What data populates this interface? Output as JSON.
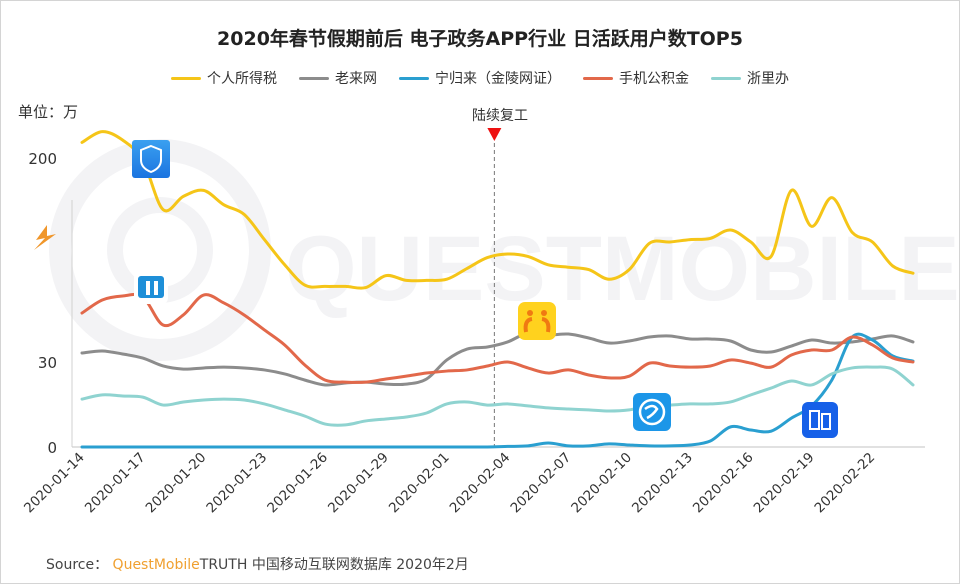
{
  "title": "2020年春节假期前后 电子政务APP行业 日活跃用户数TOP5",
  "unit_label": "单位：万",
  "annotation": "陆续复工",
  "source": {
    "prefix": "Source：",
    "brand": "QuestMobile",
    "rest": "TRUTH 中国移动互联网数据库 2020年2月"
  },
  "watermark": "QUESTMOBILE",
  "icons": [
    "tax-app-icon",
    "beijingtong-app-icon",
    "laolaiwang-app-icon",
    "ningguilai-app-icon",
    "housing-fund-app-icon"
  ],
  "chart_data": {
    "type": "line",
    "title": "2020年春节假期前后 电子政务APP行业 日活跃用户数TOP5",
    "ylabel": "单位：万",
    "xlabel": "",
    "y_axis_break": "between 30 and 200 (axis broken)",
    "yticks": [
      "0",
      "30",
      "200"
    ],
    "ytick_values": [
      0,
      30,
      200
    ],
    "ylim": [
      0,
      220
    ],
    "legend_position": "top-center",
    "grid": false,
    "annotation": {
      "label": "陆续复工",
      "x": "2020-02-03"
    },
    "x_start": "2020-01-14",
    "x_end": "2020-02-24",
    "xticks": [
      "2020-01-14",
      "2020-01-17",
      "2020-01-20",
      "2020-01-23",
      "2020-01-26",
      "2020-01-29",
      "2020-02-01",
      "2020-02-04",
      "2020-02-07",
      "2020-02-10",
      "2020-02-13",
      "2020-02-16",
      "2020-02-19",
      "2020-02-22"
    ],
    "series": [
      {
        "name": "个人所得税",
        "color": "#f5c518",
        "values": [
          213,
          222,
          215,
          198,
          157,
          168,
          173,
          161,
          153,
          132,
          111,
          94,
          93,
          93,
          92,
          102,
          98,
          98,
          99,
          108,
          117,
          120,
          118,
          111,
          109,
          107,
          99,
          107,
          129,
          130,
          132,
          133,
          140,
          130,
          118,
          173,
          143,
          167,
          138,
          130,
          110,
          104
        ]
      },
      {
        "name": "老来网",
        "color": "#8c8c8c",
        "values": [
          37.5,
          39.2,
          36.7,
          33.3,
          28.6,
          27.5,
          27.9,
          28.2,
          27.9,
          27.2,
          25.8,
          23.6,
          21.9,
          22.6,
          22.9,
          22.2,
          22.2,
          24.0,
          31.7,
          40.8,
          42.5,
          46.7,
          54.2,
          52.5,
          53.3,
          50.0,
          45.8,
          47.5,
          50.8,
          51.7,
          49.2,
          49.2,
          47.5,
          40.0,
          38.3,
          43.3,
          48.3,
          45.8,
          46.7,
          49.2,
          51.7,
          46.7
        ]
      },
      {
        "name": "宁归来（金陵网证）",
        "color": "#2a9fd0",
        "values": [
          0,
          0,
          0,
          0,
          0,
          0,
          0,
          0,
          0,
          0,
          0,
          0,
          0,
          0,
          0,
          0,
          0,
          0,
          0,
          0,
          0,
          0.2,
          0.4,
          1.4,
          0.4,
          0.4,
          1.1,
          0.7,
          0.4,
          0.4,
          0.7,
          2.1,
          7.1,
          6.0,
          5.6,
          10.2,
          14.5,
          23.7,
          50.8,
          48.3,
          35.0,
          30.8
        ]
      },
      {
        "name": "手机公积金",
        "color": "#e2684a",
        "values": [
          70.8,
          81.7,
          85.0,
          84.2,
          60.8,
          69.2,
          85.8,
          79.2,
          69.2,
          56.7,
          44.2,
          28.9,
          23.6,
          22.9,
          22.9,
          24.0,
          25.0,
          26.1,
          26.8,
          27.2,
          28.6,
          30.0,
          27.9,
          26.1,
          27.2,
          25.4,
          24.4,
          25.0,
          29.6,
          28.6,
          28.2,
          28.6,
          31.7,
          29.6,
          28.2,
          35.8,
          40.0,
          40.0,
          50.8,
          44.2,
          33.3,
          30.0
        ]
      },
      {
        "name": "浙里办",
        "color": "#8fd3d0",
        "values": [
          16.9,
          18.4,
          18.0,
          17.6,
          14.8,
          15.9,
          16.6,
          16.9,
          16.6,
          15.2,
          13.1,
          10.9,
          8.1,
          7.8,
          9.2,
          9.9,
          10.6,
          12.0,
          15.2,
          15.9,
          14.8,
          15.2,
          14.5,
          13.8,
          13.4,
          13.1,
          12.7,
          13.1,
          14.5,
          14.8,
          15.2,
          15.2,
          15.9,
          18.4,
          20.8,
          23.3,
          21.9,
          25.8,
          27.9,
          28.2,
          27.5,
          21.9
        ]
      }
    ]
  }
}
